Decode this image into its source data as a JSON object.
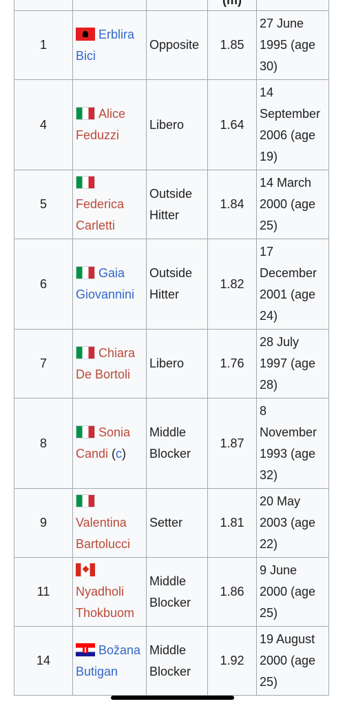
{
  "table": {
    "header": {
      "number": "",
      "name": "",
      "position": "",
      "height": "(m)",
      "dob": ""
    },
    "rows": [
      {
        "number": "1",
        "flag": "albania-flag",
        "first": "Erblira",
        "last": "Bici",
        "link_color": "blue",
        "captain": "",
        "position": "Opposite",
        "height": "1.85",
        "dob": "27 June 1995 (age 30)"
      },
      {
        "number": "4",
        "flag": "italy-flag",
        "first": "Alice",
        "last": "Feduzzi",
        "link_color": "red",
        "captain": "",
        "position": "Libero",
        "height": "1.64",
        "dob": "14 September 2006 (age 19)"
      },
      {
        "number": "5",
        "flag": "italy-flag",
        "first": "Federica",
        "last": "Carletti",
        "link_color": "red",
        "captain": "",
        "position": "Outside Hitter",
        "height": "1.84",
        "dob": "14 March 2000 (age 25)"
      },
      {
        "number": "6",
        "flag": "italy-flag",
        "first": "Gaia",
        "last": "Giovannini",
        "link_color": "blue",
        "captain": "",
        "position": "Outside Hitter",
        "height": "1.82",
        "dob": "17 December 2001 (age 24)"
      },
      {
        "number": "7",
        "flag": "italy-flag",
        "first": "Chiara",
        "last": "De Bortoli",
        "link_color": "red",
        "captain": "",
        "position": "Libero",
        "height": "1.76",
        "dob": "28 July 1997 (age 28)"
      },
      {
        "number": "8",
        "flag": "italy-flag",
        "first": "Sonia",
        "last": "Candi",
        "link_color": "red",
        "captain": "c",
        "position": "Middle Blocker",
        "height": "1.87",
        "dob": "8 November 1993 (age 32)"
      },
      {
        "number": "9",
        "flag": "italy-flag",
        "first": "Valentina",
        "last": "Bartolucci",
        "link_color": "red",
        "captain": "",
        "position": "Setter",
        "height": "1.81",
        "dob": "20 May 2003 (age 22)"
      },
      {
        "number": "11",
        "flag": "canada-flag",
        "first": "Nyadholi",
        "last": "Thokbuom",
        "link_color": "red",
        "captain": "",
        "position": "Middle Blocker",
        "height": "1.86",
        "dob": "9 June 2000 (age 25)"
      },
      {
        "number": "14",
        "flag": "croatia-flag",
        "first": "Božana",
        "last": "Butigan",
        "link_color": "blue",
        "captain": "",
        "position": "Middle Blocker",
        "height": "1.92",
        "dob": "19 August 2000 (age 25)"
      }
    ]
  }
}
